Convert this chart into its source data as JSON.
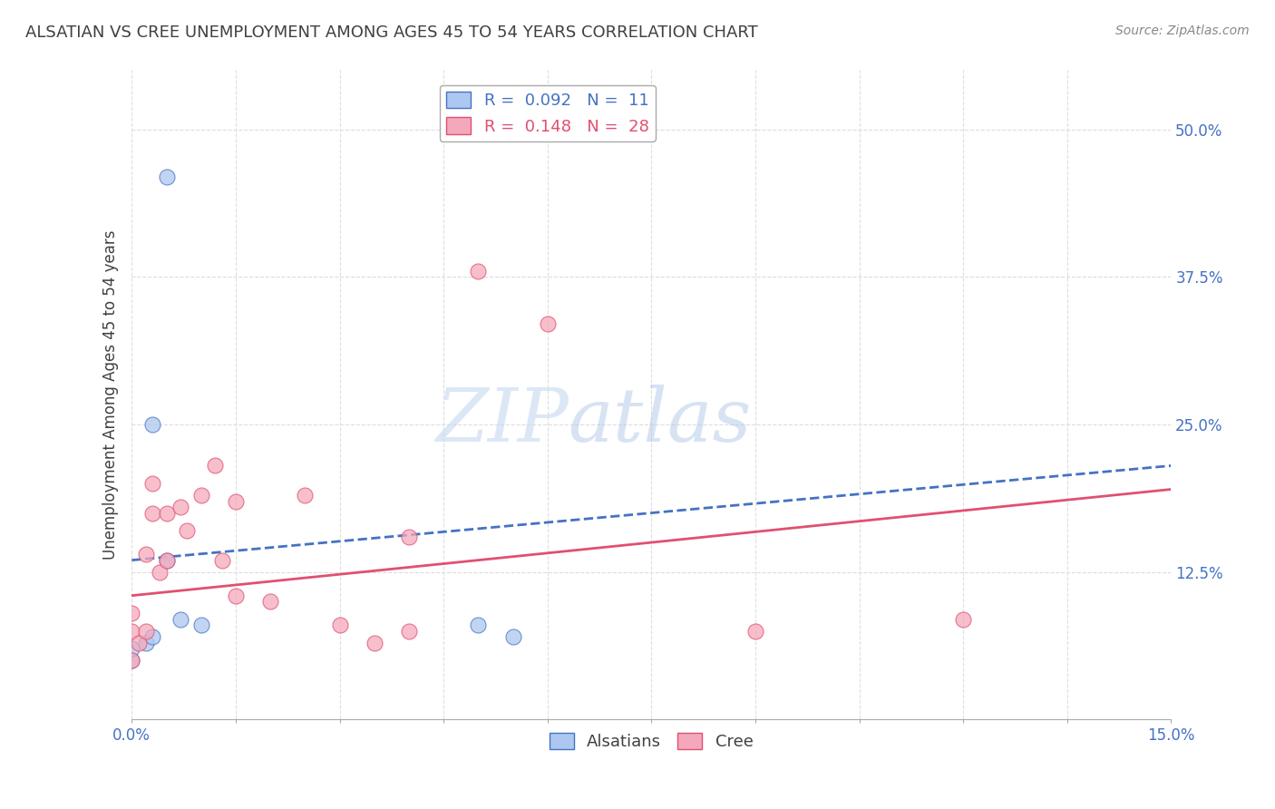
{
  "title": "ALSATIAN VS CREE UNEMPLOYMENT AMONG AGES 45 TO 54 YEARS CORRELATION CHART",
  "source": "Source: ZipAtlas.com",
  "ylabel_label": "Unemployment Among Ages 45 to 54 years",
  "xlim": [
    0.0,
    0.15
  ],
  "ylim": [
    0.0,
    0.55
  ],
  "alsatian_R": 0.092,
  "alsatian_N": 11,
  "cree_R": 0.148,
  "cree_N": 28,
  "alsatian_color": "#adc8f0",
  "cree_color": "#f5a8bc",
  "alsatian_line_color": "#4472c4",
  "cree_line_color": "#e05070",
  "alsatian_scatter_x": [
    0.005,
    0.0,
    0.0,
    0.002,
    0.003,
    0.003,
    0.005,
    0.007,
    0.01,
    0.05,
    0.055
  ],
  "alsatian_scatter_y": [
    0.46,
    0.05,
    0.06,
    0.065,
    0.07,
    0.25,
    0.135,
    0.085,
    0.08,
    0.08,
    0.07
  ],
  "cree_scatter_x": [
    0.0,
    0.0,
    0.0,
    0.001,
    0.002,
    0.002,
    0.003,
    0.003,
    0.004,
    0.005,
    0.005,
    0.007,
    0.008,
    0.01,
    0.012,
    0.013,
    0.015,
    0.015,
    0.02,
    0.025,
    0.03,
    0.035,
    0.04,
    0.04,
    0.05,
    0.06,
    0.09,
    0.12
  ],
  "cree_scatter_y": [
    0.05,
    0.075,
    0.09,
    0.065,
    0.075,
    0.14,
    0.175,
    0.2,
    0.125,
    0.135,
    0.175,
    0.18,
    0.16,
    0.19,
    0.215,
    0.135,
    0.185,
    0.105,
    0.1,
    0.19,
    0.08,
    0.065,
    0.075,
    0.155,
    0.38,
    0.335,
    0.075,
    0.085
  ],
  "alsatian_line_x0": 0.0,
  "alsatian_line_y0": 0.135,
  "alsatian_line_x1": 0.15,
  "alsatian_line_y1": 0.215,
  "cree_line_x0": 0.0,
  "cree_line_y0": 0.105,
  "cree_line_x1": 0.15,
  "cree_line_y1": 0.195,
  "watermark_text": "ZIPatlas",
  "background_color": "#ffffff",
  "grid_color": "#dddddd",
  "title_color": "#404040",
  "tick_label_color": "#4472c4",
  "source_color": "#888888"
}
